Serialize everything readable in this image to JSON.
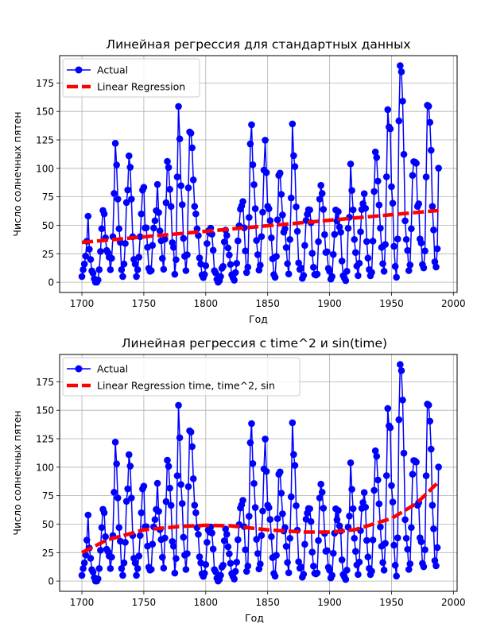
{
  "colors": {
    "actual": "#0000ff",
    "regression": "#ff0000",
    "grid": "#b0b0b0",
    "axes": "#000000"
  },
  "sunspots": [
    5,
    11,
    16,
    23,
    36,
    58,
    29,
    20,
    10,
    8,
    3,
    0,
    0,
    2,
    11,
    27,
    47,
    63,
    60,
    39,
    28,
    26,
    22,
    11,
    21,
    40,
    78,
    122,
    103,
    73,
    47,
    35,
    11,
    5,
    16,
    34,
    70,
    81,
    111,
    101,
    73,
    40,
    20,
    16,
    5,
    11,
    22,
    40,
    60,
    80.9,
    83.4,
    47.7,
    47.8,
    30.7,
    12.2,
    9.6,
    10.2,
    32.4,
    47.6,
    54,
    62.9,
    85.9,
    61.2,
    45.1,
    36.4,
    20.9,
    11.4,
    37.8,
    69.8,
    106.1,
    100.8,
    81.6,
    66.5,
    34.8,
    30.6,
    7,
    19.8,
    92.5,
    154.4,
    125.9,
    84.8,
    68.1,
    38.5,
    22.8,
    10.2,
    24.1,
    82.9,
    132,
    130.9,
    118.1,
    89.9,
    66.6,
    60,
    46.9,
    41,
    21.3,
    16,
    6.4,
    4.1,
    6.8,
    14.5,
    34,
    45,
    43.1,
    47.5,
    42.2,
    28.1,
    10.1,
    8.1,
    2.5,
    0,
    1.4,
    5,
    12.2,
    13.9,
    35.4,
    45.8,
    41.1,
    30.1,
    23.9,
    15.6,
    6.6,
    4,
    1.8,
    8.5,
    16.6,
    36.3,
    49.6,
    64.2,
    67,
    70.9,
    47.8,
    27.5,
    8.5,
    13.2,
    56.9,
    121.5,
    138.3,
    103.2,
    85.7,
    64.6,
    36.7,
    24.2,
    10.7,
    15,
    40.1,
    61.5,
    98.5,
    124.7,
    96.3,
    66.6,
    64.5,
    54.1,
    39,
    20.6,
    6.7,
    4.3,
    22.7,
    54.8,
    93.8,
    95.8,
    77.2,
    59.1,
    44,
    47,
    30.5,
    16.3,
    7.3,
    37.6,
    74,
    139,
    111.2,
    101.6,
    66.2,
    44.7,
    17,
    11.3,
    12.4,
    3.4,
    6,
    32.3,
    54.3,
    59.7,
    63.7,
    63.5,
    52.2,
    25.4,
    13.1,
    6.8,
    6.3,
    7.1,
    35.6,
    73,
    85.1,
    78,
    64,
    41.8,
    26.2,
    26.7,
    12.1,
    9.5,
    2.7,
    5,
    24.4,
    42,
    63.5,
    53.8,
    62,
    48.5,
    43.9,
    18.6,
    5.7,
    3.6,
    1.4,
    9.6,
    47.4,
    57.1,
    103.9,
    80.6,
    63.6,
    37.6,
    26.1,
    14.2,
    5.8,
    16.7,
    44.3,
    63.9,
    69,
    77.8,
    64.9,
    35.7,
    21.2,
    11.1,
    5.7,
    8.7,
    36.1,
    79.7,
    114.4,
    109.6,
    88.8,
    67.8,
    47.5,
    30.6,
    16.3,
    9.6,
    33.2,
    92.6,
    151.6,
    136.3,
    134.7,
    83.9,
    69.4,
    31.5,
    13.9,
    4.4,
    38,
    141.7,
    190.2,
    184.8,
    159,
    112.3,
    53.9,
    37.6,
    27.9,
    10.2,
    15.1,
    47,
    93.8,
    105.9,
    105.5,
    104.5,
    66.6,
    68.9,
    38,
    34.5,
    15.5,
    12.6,
    27.5,
    92.5,
    155.4,
    154.6,
    140.4,
    115.9,
    66.6,
    45.9,
    17.9,
    13.4,
    29.4,
    100.2
  ],
  "chart_data": [
    {
      "type": "line",
      "title": "Линейная регрессия для стандартных данных",
      "xlabel": "Год",
      "ylabel": "Число солнечных пятен",
      "xlim": [
        1682,
        2003
      ],
      "ylim": [
        -9,
        199
      ],
      "x_start": 1700,
      "x_end": 1988,
      "x_ticks": [
        1700,
        1750,
        1800,
        1850,
        1900,
        1950,
        2000
      ],
      "y_ticks": [
        0,
        25,
        50,
        75,
        100,
        125,
        150,
        175
      ],
      "grid": true,
      "legend_position": "top-left",
      "series": [
        {
          "name": "Actual",
          "style": "line-with-circle-markers"
        },
        {
          "name": "Linear Regression",
          "style": "dashed",
          "fit": "linear",
          "points": [
            [
              1700,
              35
            ],
            [
              1988,
              63
            ]
          ]
        }
      ]
    },
    {
      "type": "line",
      "title": "Линейная регрессия с time^2 и sin(time)",
      "xlabel": "Год",
      "ylabel": "Число солнечных пятен",
      "xlim": [
        1682,
        2003
      ],
      "ylim": [
        -9,
        199
      ],
      "x_start": 1700,
      "x_end": 1988,
      "x_ticks": [
        1700,
        1750,
        1800,
        1850,
        1900,
        1950,
        2000
      ],
      "y_ticks": [
        0,
        25,
        50,
        75,
        100,
        125,
        150,
        175
      ],
      "grid": true,
      "legend_position": "top-left",
      "series": [
        {
          "name": "Actual",
          "style": "line-with-circle-markers"
        },
        {
          "name": "Linear Regression time, time^2, sin",
          "style": "dashed",
          "fit": "quadratic",
          "points": [
            [
              1700,
              25
            ],
            [
              1720,
              36
            ],
            [
              1750,
              45
            ],
            [
              1780,
              48
            ],
            [
              1800,
              49
            ],
            [
              1820,
              48.5
            ],
            [
              1850,
              45
            ],
            [
              1880,
              43
            ],
            [
              1900,
              43
            ],
            [
              1920,
              45
            ],
            [
              1950,
              55
            ],
            [
              1970,
              68
            ],
            [
              1988,
              87
            ]
          ]
        }
      ]
    }
  ]
}
